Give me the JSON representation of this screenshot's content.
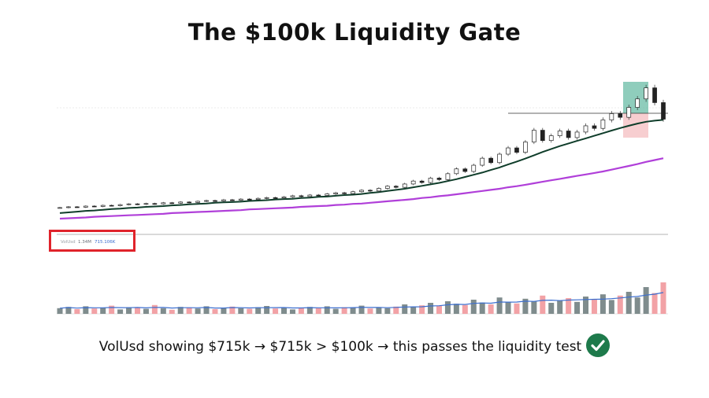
{
  "title": "The $100k Liquidity Gate",
  "caption": "VolUsd showing $715k → $715k > $100k → this passes the liquidity test",
  "volume_legend": {
    "label": "VolUsd",
    "value1": "1.34M",
    "value2": "715.106K"
  },
  "icons": {
    "caption_icon": "check-circle-icon"
  },
  "colors": {
    "accent_green": "#1e7a4b",
    "ma_fast": "#0f3d2a",
    "ma_slow": "#b03fd9",
    "highlight_box": "#e0232b",
    "vol_up": "#7f8c8d",
    "vol_down": "#f2a2a6",
    "vol_ma": "#3b6ecf",
    "target_zone": "#5fb8a0",
    "stop_zone": "#f6c5c8"
  },
  "chart_data": [
    {
      "type": "candlestick",
      "title": "",
      "xlabel": "",
      "ylabel": "",
      "grid": false,
      "series": [
        {
          "close": [
            1.0,
            1.02,
            1.01,
            1.04,
            1.03,
            1.06,
            1.05,
            1.08,
            1.1,
            1.09,
            1.11,
            1.1,
            1.13,
            1.12,
            1.15,
            1.14,
            1.17,
            1.19,
            1.18,
            1.21,
            1.2,
            1.23,
            1.22,
            1.25,
            1.27,
            1.26,
            1.29,
            1.32,
            1.3,
            1.34,
            1.33,
            1.37,
            1.4,
            1.38,
            1.43,
            1.47,
            1.45,
            1.52,
            1.58,
            1.55,
            1.64,
            1.72,
            1.68,
            1.8,
            1.76,
            1.92,
            2.05,
            1.98,
            2.15,
            2.34,
            2.22,
            2.45,
            2.62,
            2.5,
            2.78,
            3.1,
            2.82,
            2.95,
            3.08,
            2.9,
            3.05,
            3.22,
            3.15,
            3.38,
            3.55,
            3.45,
            3.72,
            3.95,
            4.25,
            3.85,
            3.4
          ]
        }
      ],
      "moving_averages": [
        {
          "values": [
            0.85,
            0.87,
            0.89,
            0.91,
            0.92,
            0.94,
            0.96,
            0.97,
            0.99,
            1.0,
            1.02,
            1.03,
            1.04,
            1.06,
            1.07,
            1.09,
            1.1,
            1.11,
            1.13,
            1.14,
            1.15,
            1.16,
            1.18,
            1.19,
            1.2,
            1.22,
            1.23,
            1.24,
            1.26,
            1.27,
            1.29,
            1.3,
            1.32,
            1.34,
            1.35,
            1.37,
            1.4,
            1.42,
            1.45,
            1.48,
            1.51,
            1.55,
            1.59,
            1.63,
            1.67,
            1.72,
            1.77,
            1.83,
            1.89,
            1.95,
            2.02,
            2.09,
            2.17,
            2.25,
            2.33,
            2.42,
            2.51,
            2.59,
            2.67,
            2.74,
            2.81,
            2.88,
            2.95,
            3.02,
            3.09,
            3.16,
            3.22,
            3.28,
            3.33,
            3.36,
            3.38
          ]
        },
        {
          "values": [
            0.7,
            0.71,
            0.72,
            0.73,
            0.75,
            0.76,
            0.77,
            0.78,
            0.79,
            0.8,
            0.81,
            0.82,
            0.83,
            0.85,
            0.86,
            0.87,
            0.88,
            0.89,
            0.9,
            0.91,
            0.92,
            0.93,
            0.95,
            0.96,
            0.97,
            0.98,
            0.99,
            1.0,
            1.02,
            1.03,
            1.04,
            1.05,
            1.07,
            1.08,
            1.1,
            1.11,
            1.13,
            1.15,
            1.17,
            1.19,
            1.21,
            1.23,
            1.26,
            1.28,
            1.31,
            1.33,
            1.36,
            1.39,
            1.42,
            1.45,
            1.48,
            1.51,
            1.55,
            1.58,
            1.62,
            1.66,
            1.7,
            1.74,
            1.78,
            1.82,
            1.86,
            1.9,
            1.94,
            1.98,
            2.03,
            2.08,
            2.13,
            2.18,
            2.24,
            2.29,
            2.34
          ]
        }
      ],
      "ylim": [
        0.4,
        4.5
      ]
    },
    {
      "type": "bar",
      "title": "",
      "xlabel": "",
      "ylabel": "",
      "series": [
        {
          "name": "VolUsd",
          "values": [
            0.18,
            0.22,
            0.15,
            0.24,
            0.17,
            0.2,
            0.26,
            0.14,
            0.21,
            0.19,
            0.16,
            0.28,
            0.18,
            0.13,
            0.22,
            0.2,
            0.17,
            0.24,
            0.15,
            0.19,
            0.23,
            0.18,
            0.16,
            0.21,
            0.25,
            0.17,
            0.2,
            0.14,
            0.19,
            0.22,
            0.18,
            0.24,
            0.16,
            0.21,
            0.19,
            0.26,
            0.17,
            0.2,
            0.18,
            0.23,
            0.3,
            0.22,
            0.27,
            0.35,
            0.25,
            0.4,
            0.32,
            0.28,
            0.45,
            0.36,
            0.3,
            0.52,
            0.38,
            0.33,
            0.48,
            0.4,
            0.58,
            0.35,
            0.42,
            0.5,
            0.38,
            0.55,
            0.46,
            0.62,
            0.44,
            0.58,
            0.7,
            0.52,
            0.85,
            0.66,
            1.0
          ]
        }
      ],
      "ylim": [
        0,
        1.1
      ]
    }
  ]
}
